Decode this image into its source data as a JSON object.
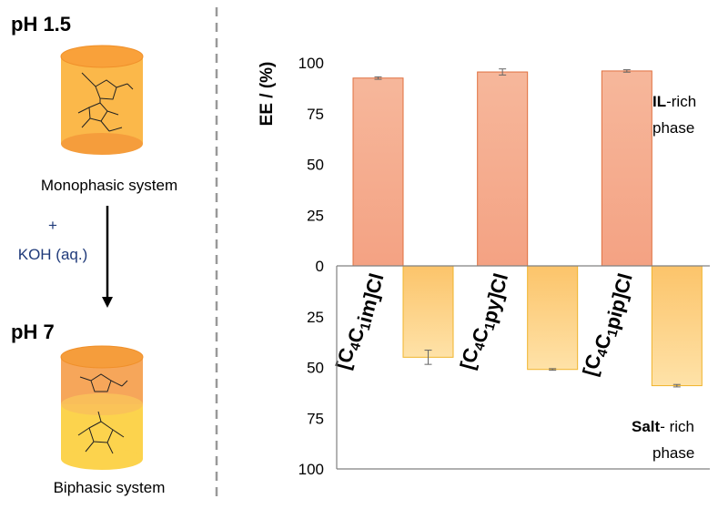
{
  "left_panel": {
    "ph_top": "pH 1.5",
    "ph_bottom": "pH 7",
    "mono_caption": "Monophasic system",
    "bi_caption": "Biphasic system",
    "reagent_plus": "+",
    "reagent": "KOH (aq.)"
  },
  "annotations": {
    "il_bold": "IL",
    "il_rest": "-rich",
    "il_phase": "phase",
    "salt_bold": "Salt",
    "salt_rest": "- rich",
    "salt_phase": "phase"
  },
  "colors": {
    "il_bar": "#f4a283",
    "il_edge": "#e0703f",
    "salt_bar": "#fdd58a",
    "salt_edge": "#f0b42c",
    "cylinder_top": "#f59d3c",
    "cylinder_body": "#fbb84a",
    "cylinder_bottom_layer": "#fcd34d",
    "divider": "#999999"
  },
  "chart_data": {
    "type": "bar",
    "ylabel": "EE / (%)",
    "ylim": [
      -100,
      100
    ],
    "yticks": [
      {
        "value": 100,
        "label": "100"
      },
      {
        "value": 75,
        "label": "75"
      },
      {
        "value": 50,
        "label": "50"
      },
      {
        "value": 25,
        "label": "25"
      },
      {
        "value": 0,
        "label": "0"
      },
      {
        "value": -25,
        "label": "25"
      },
      {
        "value": -50,
        "label": "50"
      },
      {
        "value": -75,
        "label": "75"
      },
      {
        "value": -100,
        "label": "100"
      }
    ],
    "categories": [
      {
        "prefix": "[C",
        "sub1": "4",
        "mid": "C",
        "sub2": "1",
        "suffix": "im]Cl"
      },
      {
        "prefix": "[C",
        "sub1": "4",
        "mid": "C",
        "sub2": "1",
        "suffix": "py]Cl"
      },
      {
        "prefix": "[C",
        "sub1": "4",
        "mid": "C",
        "sub2": "1",
        "suffix": "pip]Cl"
      }
    ],
    "series": [
      {
        "values": [
          92.5,
          95.5,
          96.0
        ],
        "errors": [
          0.6,
          1.5,
          0.6
        ]
      },
      {
        "values": [
          -45.0,
          -51.0,
          -59.0
        ],
        "errors": [
          3.5,
          0.4,
          0.6
        ]
      }
    ],
    "grid": false
  }
}
